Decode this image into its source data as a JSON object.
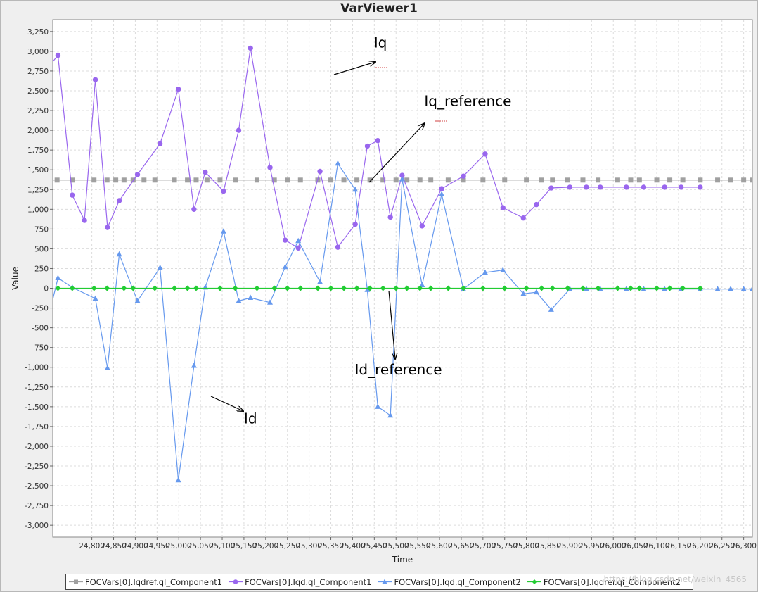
{
  "window": {
    "title": "VarViewer1"
  },
  "chart_data": {
    "type": "line",
    "title": "VarViewer1",
    "xlabel": "Time",
    "ylabel": "Value",
    "xlim": [
      24710,
      26320
    ],
    "ylim": [
      -3150,
      3400
    ],
    "xticks": [
      24800,
      24850,
      24900,
      24950,
      25000,
      25050,
      25100,
      25150,
      25200,
      25250,
      25300,
      25350,
      25400,
      25450,
      25500,
      25550,
      25600,
      25650,
      25700,
      25750,
      25800,
      25850,
      25900,
      25950,
      26000,
      26050,
      26100,
      26150,
      26200,
      26250,
      26300
    ],
    "xtick_labels": [
      "24,800",
      "24,850",
      "24,900",
      "24,950",
      "25,000",
      "25,050",
      "25,100",
      "25,150",
      "25,200",
      "25,250",
      "25,300",
      "25,350",
      "25,400",
      "25,450",
      "25,500",
      "25,550",
      "25,600",
      "25,650",
      "25,700",
      "25,750",
      "25,800",
      "25,850",
      "25,900",
      "25,950",
      "26,000",
      "26,050",
      "26,100",
      "26,150",
      "26,200",
      "26,250",
      "26,300"
    ],
    "yticks": [
      3250,
      3000,
      2750,
      2500,
      2250,
      2000,
      1750,
      1500,
      1250,
      1000,
      750,
      500,
      250,
      0,
      -250,
      -500,
      -750,
      -1000,
      -1250,
      -1500,
      -1750,
      -2000,
      -2250,
      -2500,
      -2750,
      -3000
    ],
    "ytick_labels": [
      "3,250",
      "3,000",
      "2,750",
      "2,500",
      "2,250",
      "2,000",
      "1,750",
      "1,500",
      "1,250",
      "1,000",
      "750",
      "500",
      "250",
      "0",
      "-250",
      "-500",
      "-750",
      "-1,000",
      "-1,250",
      "-1,500",
      "-1,750",
      "-2,000",
      "-2,250",
      "-2,500",
      "-2,750",
      "-3,000"
    ],
    "grid": true,
    "legend_position": "bottom",
    "series": [
      {
        "name": "FOCVars[0].Iqdref.ql_Component1",
        "color": "#a0a0a0",
        "marker": "square",
        "x": [
          24700,
          24720,
          24755,
          24805,
          24835,
          24855,
          24874,
          24895,
          24920,
          24945,
          24990,
          25020,
          25040,
          25065,
          25095,
          25130,
          25180,
          25220,
          25250,
          25280,
          25320,
          25350,
          25380,
          25410,
          25440,
          25470,
          25500,
          25525,
          25555,
          25580,
          25620,
          25655,
          25700,
          25750,
          25800,
          25835,
          25860,
          25895,
          25930,
          25965,
          26010,
          26040,
          26060,
          26100,
          26130,
          26160,
          26200,
          26240,
          26270,
          26300,
          26320
        ],
        "y": [
          1370,
          1370,
          1370,
          1370,
          1370,
          1370,
          1370,
          1370,
          1370,
          1370,
          1370,
          1370,
          1370,
          1370,
          1370,
          1370,
          1370,
          1370,
          1370,
          1370,
          1370,
          1370,
          1370,
          1370,
          1370,
          1370,
          1370,
          1370,
          1370,
          1370,
          1370,
          1370,
          1370,
          1370,
          1370,
          1370,
          1370,
          1370,
          1370,
          1370,
          1370,
          1370,
          1370,
          1370,
          1370,
          1370,
          1370,
          1370,
          1370,
          1370,
          1370
        ]
      },
      {
        "name": "FOCVars[0].Iqd.ql_Component1",
        "color": "#9966ee",
        "marker": "circle",
        "x": [
          24700,
          24722,
          24755,
          24783,
          24808,
          24836,
          24863,
          24905,
          24957,
          24999,
          25035,
          25061,
          25103,
          25138,
          25165,
          25210,
          25245,
          25275,
          25325,
          25366,
          25406,
          25434,
          25458,
          25487,
          25514,
          25560,
          25605,
          25655,
          25705,
          25746,
          25793,
          25823,
          25857,
          25900,
          25938,
          25970,
          26030,
          26070,
          26118,
          26156,
          26200
        ],
        "y": [
          2800,
          2950,
          1180,
          860,
          2640,
          770,
          1110,
          1440,
          1830,
          2520,
          1000,
          1470,
          1230,
          2000,
          3040,
          1530,
          610,
          510,
          1480,
          520,
          810,
          1800,
          1870,
          900,
          1430,
          790,
          1260,
          1420,
          1700,
          1020,
          890,
          1060,
          1270,
          1280,
          1280,
          1280,
          1280,
          1280,
          1280,
          1280,
          1280
        ]
      },
      {
        "name": "FOCVars[0].Iqd.ql_Component2",
        "color": "#6699ee",
        "marker": "triangle",
        "x": [
          24700,
          24722,
          24755,
          24808,
          24836,
          24863,
          24905,
          24957,
          24999,
          25035,
          25061,
          25103,
          25138,
          25165,
          25210,
          25245,
          25275,
          25325,
          25366,
          25406,
          25434,
          25458,
          25487,
          25514,
          25560,
          25605,
          25655,
          25705,
          25746,
          25793,
          25823,
          25857,
          25900,
          25938,
          25970,
          26030,
          26070,
          26118,
          26156,
          26200,
          26240,
          26270,
          26300,
          26320
        ],
        "y": [
          -370,
          130,
          10,
          -130,
          -1010,
          430,
          -160,
          260,
          -2430,
          -980,
          10,
          720,
          -160,
          -120,
          -180,
          270,
          600,
          80,
          1580,
          1250,
          -20,
          -1500,
          -1610,
          1380,
          40,
          1190,
          -10,
          200,
          230,
          -70,
          -50,
          -270,
          -10,
          -10,
          -10,
          -10,
          -10,
          -10,
          -10,
          -10,
          -10,
          -10,
          -10,
          -10
        ]
      },
      {
        "name": "FOCVars[0].Iqdref.ql_Component2",
        "color": "#22cc33",
        "marker": "diamond",
        "x": [
          24722,
          24755,
          24805,
          24835,
          24874,
          24895,
          24945,
          24990,
          25020,
          25040,
          25095,
          25130,
          25180,
          25220,
          25250,
          25280,
          25320,
          25350,
          25380,
          25410,
          25440,
          25470,
          25500,
          25525,
          25555,
          25580,
          25620,
          25655,
          25700,
          25750,
          25800,
          25835,
          25860,
          25895,
          25930,
          25965,
          26010,
          26040,
          26060,
          26100,
          26130,
          26160,
          26200
        ],
        "y": [
          0,
          0,
          0,
          0,
          0,
          0,
          0,
          0,
          0,
          0,
          0,
          0,
          0,
          0,
          0,
          0,
          0,
          0,
          0,
          0,
          0,
          0,
          0,
          0,
          0,
          0,
          0,
          0,
          0,
          0,
          0,
          0,
          0,
          0,
          0,
          0,
          0,
          0,
          0,
          0,
          0,
          0,
          0
        ]
      }
    ],
    "annotations": [
      {
        "text": "Iq",
        "x": 25449,
        "y": 3050
      },
      {
        "text": "Iq_reference",
        "x": 25565,
        "y": 2310
      },
      {
        "text": "Id_reference",
        "x": 25405,
        "y": -1090
      },
      {
        "text": "Id",
        "x": 25150,
        "y": -1710
      }
    ]
  },
  "watermark": "https://blog.csdn.net/weixin_4565"
}
